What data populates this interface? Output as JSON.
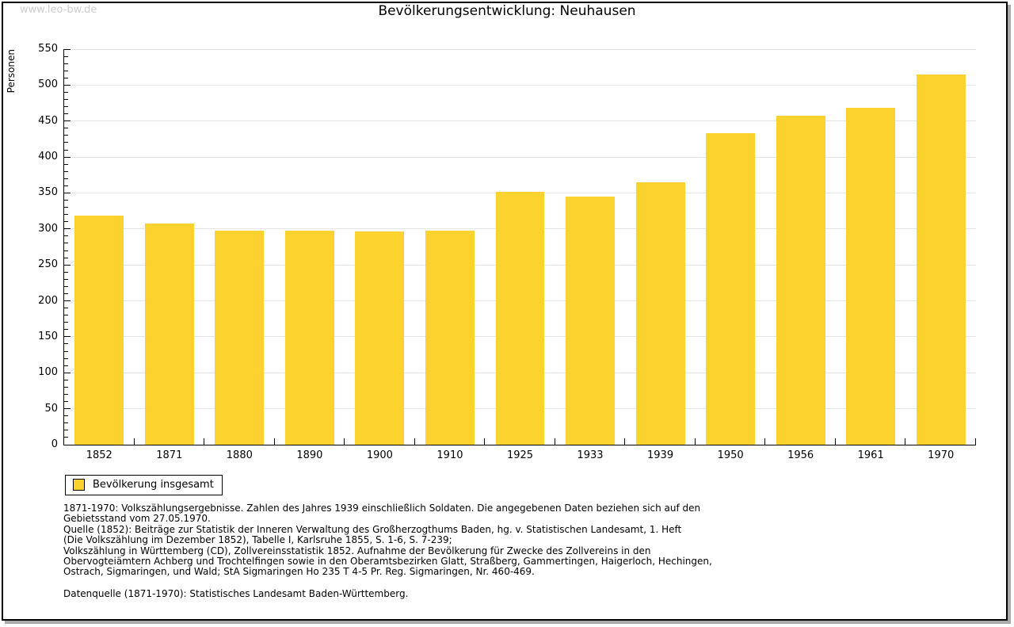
{
  "page": {
    "watermark": "www.leo-bw.de",
    "title": "Bevölkerungsentwicklung: Neuhausen"
  },
  "chart_data": {
    "type": "bar",
    "title": "Bevölkerungsentwicklung: Neuhausen",
    "xlabel": "",
    "ylabel": "Personen",
    "categories": [
      "1852",
      "1871",
      "1880",
      "1890",
      "1900",
      "1910",
      "1925",
      "1933",
      "1939",
      "1950",
      "1956",
      "1961",
      "1970"
    ],
    "values": [
      319,
      308,
      298,
      298,
      297,
      298,
      352,
      345,
      365,
      433,
      457,
      468,
      515
    ],
    "ylim": [
      0,
      550
    ],
    "y_major_step": 50,
    "y_minor_step": 10,
    "y_tick_labels": [
      "0",
      "50",
      "100",
      "150",
      "200",
      "250",
      "300",
      "350",
      "400",
      "450",
      "500",
      "550"
    ],
    "grid": true,
    "bar_color": "#fcd32e",
    "gridline_color": "#e4e4e4",
    "legend_position": "bottom-left"
  },
  "legend": {
    "label": "Bevölkerung insgesamt",
    "swatch_color": "#fcd32e"
  },
  "footnotes": {
    "lines": [
      "1871-1970: Volkszählungsergebnisse. Zahlen des Jahres 1939 einschließlich Soldaten. Die angegebenen Daten beziehen sich auf den",
      "Gebietsstand vom 27.05.1970.",
      "Quelle (1852): Beiträge zur Statistik der Inneren Verwaltung des Großherzogthums Baden, hg. v. Statistischen Landesamt, 1. Heft",
      "(Die Volkszählung im Dezember 1852), Tabelle I, Karlsruhe 1855, S. 1-6, S. 7-239;",
      "Volkszählung in Württemberg (CD), Zollvereinsstatistik 1852. Aufnahme der Bevölkerung für Zwecke des Zollvereins in den",
      "Obervogteiämtern Achberg und Trochtelfingen sowie in den Oberamtsbezirken Glatt, Straßberg, Gammertingen, Haigerloch, Hechingen,",
      "Ostrach, Sigmaringen, und Wald; StA Sigmaringen Ho 235 T 4-5 Pr. Reg. Sigmaringen, Nr. 460-469."
    ],
    "datasource": "Datenquelle (1871-1970): Statistisches Landesamt Baden-Württemberg."
  }
}
